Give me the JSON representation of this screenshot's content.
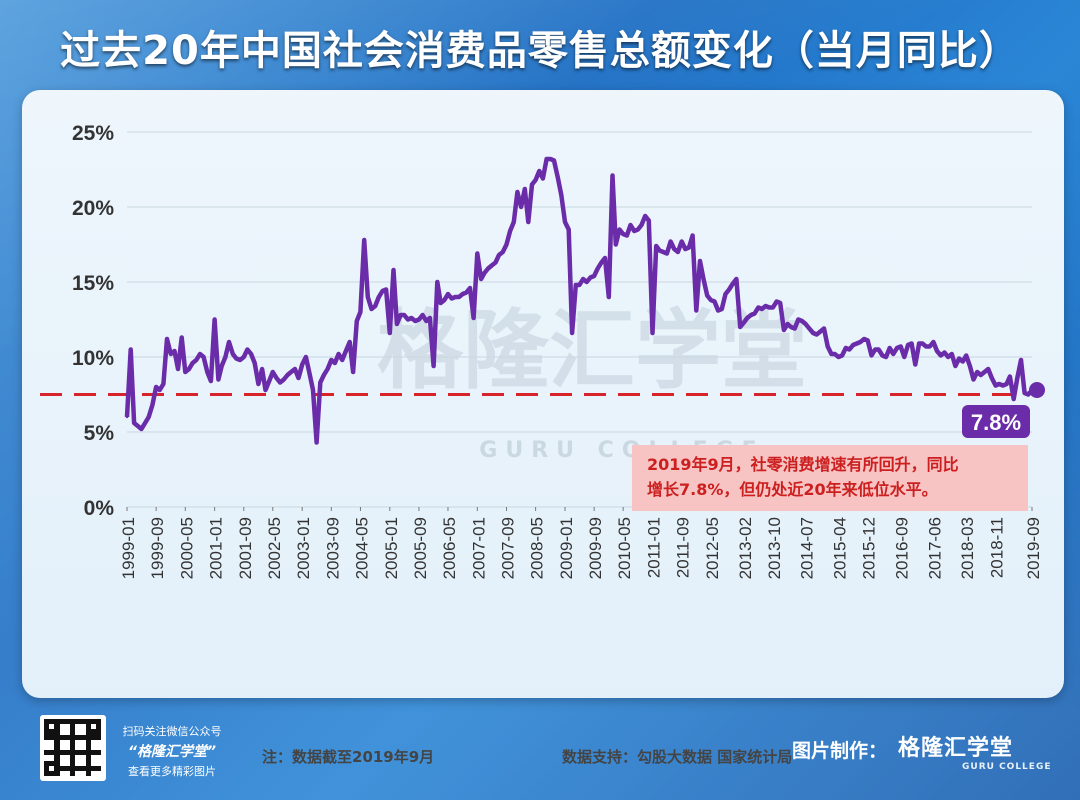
{
  "title": "过去20年中国社会消费品零售总额变化（当月同比）",
  "note": "注：数据截至2019年9月",
  "source": "数据支持：勾股大数据  国家统计局",
  "watermark": {
    "text": "格隆汇学堂",
    "sub": "GURU COLLEGE"
  },
  "qr": {
    "line1": "扫码关注微信公众号",
    "brand": "“格隆汇学堂”",
    "line3": "查看更多精彩图片"
  },
  "credit": {
    "label": "图片制作：",
    "brand": "格隆汇学堂",
    "sub": "GURU COLLEGE"
  },
  "colors": {
    "line": "#6a2ca8",
    "reference": "#d9232b",
    "callout_bg": "#f7c3c3",
    "callout_text": "#cc1f1f",
    "badge_bg": "#6a2ca8"
  },
  "chart_data": {
    "type": "line",
    "title": "过去20年中国社会消费品零售总额变化（当月同比）",
    "xlabel": "",
    "ylabel": "",
    "ylim": [
      0,
      25
    ],
    "yticks": [
      "0%",
      "5%",
      "10%",
      "15%",
      "20%",
      "25%"
    ],
    "grid": true,
    "xticks": [
      "1999-01",
      "1999-09",
      "2000-05",
      "2001-01",
      "2001-09",
      "2002-05",
      "2003-01",
      "2003-09",
      "2004-05",
      "2005-01",
      "2005-09",
      "2006-05",
      "2007-01",
      "2007-09",
      "2008-05",
      "2009-01",
      "2009-09",
      "2010-05",
      "2011-01",
      "2011-09",
      "2012-05",
      "2013-02",
      "2013-10",
      "2014-07",
      "2015-04",
      "2015-12",
      "2016-09",
      "2017-06",
      "2018-03",
      "2018-11",
      "2019-09"
    ],
    "reference_line": {
      "value": 7.5,
      "style": "dashed"
    },
    "latest": {
      "x": "2019-09",
      "value": 7.8,
      "label": "7.8%"
    },
    "annotation": "2019年9月，社零消费增速有所回升，同比增长7.8%，但仍处近20年来低位水平。",
    "series": [
      {
        "points": [
          [
            "1999-01",
            6.0
          ],
          [
            "1999-02",
            10.5
          ],
          [
            "1999-03",
            5.6
          ],
          [
            "1999-04",
            5.4
          ],
          [
            "1999-05",
            5.2
          ],
          [
            "1999-06",
            5.6
          ],
          [
            "1999-07",
            6.0
          ],
          [
            "1999-08",
            6.8
          ],
          [
            "1999-09",
            8.0
          ],
          [
            "1999-10",
            7.8
          ],
          [
            "1999-11",
            8.2
          ],
          [
            "1999-12",
            11.2
          ],
          [
            "2000-01",
            10.2
          ],
          [
            "2000-02",
            10.4
          ],
          [
            "2000-03",
            9.2
          ],
          [
            "2000-04",
            11.3
          ],
          [
            "2000-05",
            9.0
          ],
          [
            "2000-06",
            9.2
          ],
          [
            "2000-07",
            9.6
          ],
          [
            "2000-08",
            9.8
          ],
          [
            "2000-09",
            10.2
          ],
          [
            "2000-10",
            10.0
          ],
          [
            "2000-11",
            9.0
          ],
          [
            "2000-12",
            8.4
          ],
          [
            "2001-01",
            12.5
          ],
          [
            "2001-02",
            8.5
          ],
          [
            "2001-03",
            9.4
          ],
          [
            "2001-04",
            10.0
          ],
          [
            "2001-05",
            11.0
          ],
          [
            "2001-06",
            10.2
          ],
          [
            "2001-07",
            9.9
          ],
          [
            "2001-08",
            9.8
          ],
          [
            "2001-09",
            10.0
          ],
          [
            "2001-10",
            10.5
          ],
          [
            "2001-11",
            10.2
          ],
          [
            "2001-12",
            9.6
          ],
          [
            "2002-01",
            8.2
          ],
          [
            "2002-02",
            9.2
          ],
          [
            "2002-03",
            7.8
          ],
          [
            "2002-04",
            8.4
          ],
          [
            "2002-05",
            9.0
          ],
          [
            "2002-06",
            8.6
          ],
          [
            "2002-07",
            8.3
          ],
          [
            "2002-08",
            8.5
          ],
          [
            "2002-09",
            8.8
          ],
          [
            "2002-10",
            9.0
          ],
          [
            "2002-11",
            9.2
          ],
          [
            "2002-12",
            8.6
          ],
          [
            "2003-01",
            9.5
          ],
          [
            "2003-02",
            10.0
          ],
          [
            "2003-03",
            9.0
          ],
          [
            "2003-04",
            7.8
          ],
          [
            "2003-05",
            4.3
          ],
          [
            "2003-06",
            8.3
          ],
          [
            "2003-07",
            8.8
          ],
          [
            "2003-08",
            9.2
          ],
          [
            "2003-09",
            9.8
          ],
          [
            "2003-10",
            9.6
          ],
          [
            "2003-11",
            10.2
          ],
          [
            "2003-12",
            9.8
          ],
          [
            "2004-01",
            10.4
          ],
          [
            "2004-02",
            11.0
          ],
          [
            "2004-03",
            9.0
          ],
          [
            "2004-04",
            12.4
          ],
          [
            "2004-05",
            13.0
          ],
          [
            "2004-06",
            17.8
          ],
          [
            "2004-07",
            14.0
          ],
          [
            "2004-08",
            13.2
          ],
          [
            "2004-09",
            13.4
          ],
          [
            "2004-10",
            14.0
          ],
          [
            "2004-11",
            14.4
          ],
          [
            "2004-12",
            14.5
          ],
          [
            "2005-01",
            11.6
          ],
          [
            "2005-02",
            15.8
          ],
          [
            "2005-03",
            12.2
          ],
          [
            "2005-04",
            12.8
          ],
          [
            "2005-05",
            12.8
          ],
          [
            "2005-06",
            12.5
          ],
          [
            "2005-07",
            12.6
          ],
          [
            "2005-08",
            12.4
          ],
          [
            "2005-09",
            12.5
          ],
          [
            "2005-10",
            12.8
          ],
          [
            "2005-11",
            12.4
          ],
          [
            "2005-12",
            12.6
          ],
          [
            "2006-01",
            9.4
          ],
          [
            "2006-02",
            15.0
          ],
          [
            "2006-03",
            13.6
          ],
          [
            "2006-04",
            13.8
          ],
          [
            "2006-05",
            14.2
          ],
          [
            "2006-06",
            13.9
          ],
          [
            "2006-07",
            14.0
          ],
          [
            "2006-08",
            14.0
          ],
          [
            "2006-09",
            14.2
          ],
          [
            "2006-10",
            14.3
          ],
          [
            "2006-11",
            14.6
          ],
          [
            "2006-12",
            12.6
          ],
          [
            "2007-01",
            16.9
          ],
          [
            "2007-02",
            15.2
          ],
          [
            "2007-03",
            15.6
          ],
          [
            "2007-04",
            15.9
          ],
          [
            "2007-05",
            16.1
          ],
          [
            "2007-06",
            16.3
          ],
          [
            "2007-07",
            16.8
          ],
          [
            "2007-08",
            17.0
          ],
          [
            "2007-09",
            17.5
          ],
          [
            "2007-10",
            18.4
          ],
          [
            "2007-11",
            19.0
          ],
          [
            "2007-12",
            21.0
          ],
          [
            "2008-01",
            20.0
          ],
          [
            "2008-02",
            21.2
          ],
          [
            "2008-03",
            19.0
          ],
          [
            "2008-04",
            21.5
          ],
          [
            "2008-05",
            21.8
          ],
          [
            "2008-06",
            22.4
          ],
          [
            "2008-07",
            21.9
          ],
          [
            "2008-08",
            23.2
          ],
          [
            "2008-09",
            23.2
          ],
          [
            "2008-10",
            23.1
          ],
          [
            "2008-11",
            22.0
          ],
          [
            "2008-12",
            20.8
          ],
          [
            "2009-01",
            19.0
          ],
          [
            "2009-02",
            18.5
          ],
          [
            "2009-03",
            11.6
          ],
          [
            "2009-04",
            14.8
          ],
          [
            "2009-05",
            14.8
          ],
          [
            "2009-06",
            15.2
          ],
          [
            "2009-07",
            15.0
          ],
          [
            "2009-08",
            15.3
          ],
          [
            "2009-09",
            15.4
          ],
          [
            "2009-10",
            15.9
          ],
          [
            "2009-11",
            16.3
          ],
          [
            "2009-12",
            16.6
          ],
          [
            "2010-01",
            14.0
          ],
          [
            "2010-02",
            22.1
          ],
          [
            "2010-03",
            17.5
          ],
          [
            "2010-04",
            18.5
          ],
          [
            "2010-05",
            18.2
          ],
          [
            "2010-06",
            18.1
          ],
          [
            "2010-07",
            18.8
          ],
          [
            "2010-08",
            18.4
          ],
          [
            "2010-09",
            18.5
          ],
          [
            "2010-10",
            18.8
          ],
          [
            "2010-11",
            19.4
          ],
          [
            "2010-12",
            19.1
          ],
          [
            "2011-01",
            11.6
          ],
          [
            "2011-02",
            17.4
          ],
          [
            "2011-03",
            17.1
          ],
          [
            "2011-04",
            17.0
          ],
          [
            "2011-05",
            16.9
          ],
          [
            "2011-06",
            17.7
          ],
          [
            "2011-07",
            17.2
          ],
          [
            "2011-08",
            17.0
          ],
          [
            "2011-09",
            17.7
          ],
          [
            "2011-10",
            17.2
          ],
          [
            "2011-11",
            17.3
          ],
          [
            "2011-12",
            18.1
          ],
          [
            "2012-01",
            13.1
          ],
          [
            "2012-02",
            16.4
          ],
          [
            "2012-03",
            15.2
          ],
          [
            "2012-04",
            14.1
          ],
          [
            "2012-05",
            13.8
          ],
          [
            "2012-06",
            13.7
          ],
          [
            "2012-07",
            13.1
          ],
          [
            "2012-08",
            13.2
          ],
          [
            "2012-09",
            14.2
          ],
          [
            "2012-10",
            14.5
          ],
          [
            "2012-11",
            14.9
          ],
          [
            "2012-12",
            15.2
          ],
          [
            "2013-01",
            12.0
          ],
          [
            "2013-02",
            12.3
          ],
          [
            "2013-03",
            12.6
          ],
          [
            "2013-04",
            12.8
          ],
          [
            "2013-05",
            12.9
          ],
          [
            "2013-06",
            13.3
          ],
          [
            "2013-07",
            13.2
          ],
          [
            "2013-08",
            13.4
          ],
          [
            "2013-09",
            13.3
          ],
          [
            "2013-10",
            13.3
          ],
          [
            "2013-11",
            13.7
          ],
          [
            "2013-12",
            13.6
          ],
          [
            "2014-01",
            11.8
          ],
          [
            "2014-02",
            12.2
          ],
          [
            "2014-03",
            12.0
          ],
          [
            "2014-04",
            11.9
          ],
          [
            "2014-05",
            12.5
          ],
          [
            "2014-06",
            12.4
          ],
          [
            "2014-07",
            12.2
          ],
          [
            "2014-08",
            11.9
          ],
          [
            "2014-09",
            11.6
          ],
          [
            "2014-10",
            11.5
          ],
          [
            "2014-11",
            11.7
          ],
          [
            "2014-12",
            11.9
          ],
          [
            "2015-01",
            10.7
          ],
          [
            "2015-02",
            10.2
          ],
          [
            "2015-03",
            10.2
          ],
          [
            "2015-04",
            10.0
          ],
          [
            "2015-05",
            10.1
          ],
          [
            "2015-06",
            10.6
          ],
          [
            "2015-07",
            10.5
          ],
          [
            "2015-08",
            10.8
          ],
          [
            "2015-09",
            10.9
          ],
          [
            "2015-10",
            11.0
          ],
          [
            "2015-11",
            11.2
          ],
          [
            "2015-12",
            11.1
          ],
          [
            "2016-01",
            10.1
          ],
          [
            "2016-02",
            10.5
          ],
          [
            "2016-03",
            10.5
          ],
          [
            "2016-04",
            10.1
          ],
          [
            "2016-05",
            10.0
          ],
          [
            "2016-06",
            10.6
          ],
          [
            "2016-07",
            10.2
          ],
          [
            "2016-08",
            10.6
          ],
          [
            "2016-09",
            10.7
          ],
          [
            "2016-10",
            10.0
          ],
          [
            "2016-11",
            10.8
          ],
          [
            "2016-12",
            10.9
          ],
          [
            "2017-01",
            9.5
          ],
          [
            "2017-02",
            10.9
          ],
          [
            "2017-03",
            10.9
          ],
          [
            "2017-04",
            10.7
          ],
          [
            "2017-05",
            10.7
          ],
          [
            "2017-06",
            11.0
          ],
          [
            "2017-07",
            10.4
          ],
          [
            "2017-08",
            10.1
          ],
          [
            "2017-09",
            10.3
          ],
          [
            "2017-10",
            10.0
          ],
          [
            "2017-11",
            10.2
          ],
          [
            "2017-12",
            9.4
          ],
          [
            "2018-01",
            9.9
          ],
          [
            "2018-02",
            9.7
          ],
          [
            "2018-03",
            10.1
          ],
          [
            "2018-04",
            9.4
          ],
          [
            "2018-05",
            8.5
          ],
          [
            "2018-06",
            9.0
          ],
          [
            "2018-07",
            8.8
          ],
          [
            "2018-08",
            9.0
          ],
          [
            "2018-09",
            9.2
          ],
          [
            "2018-10",
            8.6
          ],
          [
            "2018-11",
            8.1
          ],
          [
            "2018-12",
            8.2
          ],
          [
            "2019-01",
            8.1
          ],
          [
            "2019-02",
            8.2
          ],
          [
            "2019-03",
            8.7
          ],
          [
            "2019-04",
            7.2
          ],
          [
            "2019-05",
            8.6
          ],
          [
            "2019-06",
            9.8
          ],
          [
            "2019-07",
            7.6
          ],
          [
            "2019-08",
            7.5
          ],
          [
            "2019-09",
            7.8
          ]
        ]
      }
    ]
  }
}
